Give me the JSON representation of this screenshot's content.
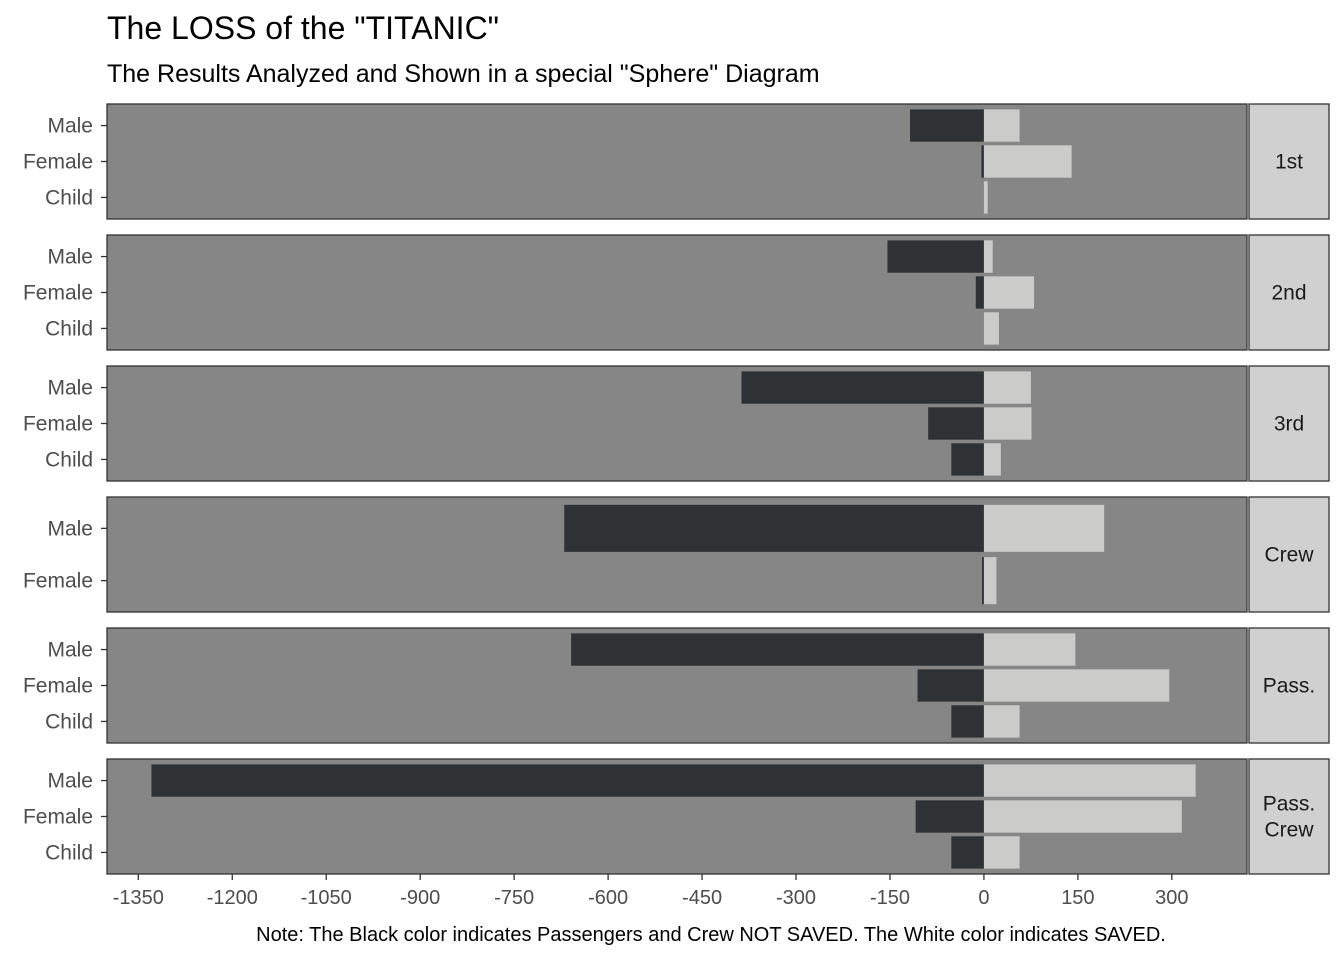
{
  "chart_data": {
    "type": "bar",
    "orientation": "horizontal",
    "title": "The LOSS of the \"TITANIC\"",
    "subtitle": "The Results Analyzed and Shown in a special \"Sphere\" Diagram",
    "caption": "Note: The Black color indicates Passengers and Crew NOT SAVED. The White color indicates SAVED.",
    "xlim": [
      -1400,
      420
    ],
    "x_ticks": [
      -1350,
      -1200,
      -1050,
      -900,
      -750,
      -600,
      -450,
      -300,
      -150,
      0,
      150,
      300
    ],
    "colors": {
      "panel_bg": "#858685",
      "not_saved": "#2f3235",
      "saved": "#cbcbca",
      "strip_bg": "#d0d0d0",
      "border": "#333333"
    },
    "facets": [
      {
        "strip": [
          "1st"
        ],
        "categories": [
          "Male",
          "Female",
          "Child"
        ],
        "not_saved": [
          -118,
          -4,
          0
        ],
        "saved": [
          57,
          140,
          6
        ]
      },
      {
        "strip": [
          "2nd"
        ],
        "categories": [
          "Male",
          "Female",
          "Child"
        ],
        "not_saved": [
          -154,
          -13,
          0
        ],
        "saved": [
          14,
          80,
          24
        ]
      },
      {
        "strip": [
          "3rd"
        ],
        "categories": [
          "Male",
          "Female",
          "Child"
        ],
        "not_saved": [
          -387,
          -89,
          -52
        ],
        "saved": [
          75,
          76,
          27
        ]
      },
      {
        "strip": [
          "Crew"
        ],
        "categories": [
          "Male",
          "Female"
        ],
        "not_saved": [
          -670,
          -3
        ],
        "saved": [
          192,
          20
        ]
      },
      {
        "strip": [
          "Pass."
        ],
        "categories": [
          "Male",
          "Female",
          "Child"
        ],
        "not_saved": [
          -659,
          -106,
          -52
        ],
        "saved": [
          146,
          296,
          57
        ]
      },
      {
        "strip": [
          "Pass.",
          "Crew"
        ],
        "categories": [
          "Male",
          "Female",
          "Child"
        ],
        "not_saved": [
          -1329,
          -109,
          -52
        ],
        "saved": [
          338,
          316,
          57
        ]
      }
    ]
  }
}
